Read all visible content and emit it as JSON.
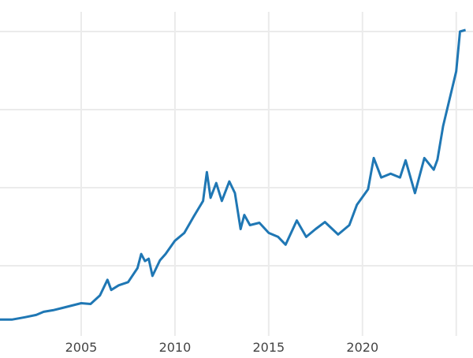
{
  "chart_data": {
    "type": "line",
    "title": "",
    "xlabel": "",
    "ylabel": "",
    "xlim": [
      2000.67,
      2025.6
    ],
    "ylim": [
      0,
      4.3
    ],
    "x_ticks": [
      2005,
      2010,
      2015,
      2020,
      2025
    ],
    "x_tick_labels": [
      "2005",
      "2010",
      "2015",
      "2020",
      ""
    ],
    "y_gridlines": [
      1,
      2,
      3,
      4
    ],
    "grid": true,
    "line_color": "#1f77b4",
    "series": [
      {
        "x": [
          2000.67,
          2001.3,
          2002,
          2002.6,
          2003,
          2003.5,
          2004,
          2004.5,
          2005,
          2005.5,
          2006,
          2006.4,
          2006.6,
          2007,
          2007.5,
          2008,
          2008.2,
          2008.4,
          2008.6,
          2008.8,
          2009.2,
          2009.5,
          2010,
          2010.5,
          2011,
          2011.5,
          2011.7,
          2011.9,
          2012.2,
          2012.5,
          2012.9,
          2013.2,
          2013.5,
          2013.7,
          2014,
          2014.5,
          2015,
          2015.5,
          2015.9,
          2016.5,
          2017,
          2017.5,
          2018,
          2018.7,
          2019.3,
          2019.7,
          2020.3,
          2020.6,
          2021,
          2021.5,
          2022,
          2022.3,
          2022.8,
          2023.3,
          2023.8,
          2024,
          2024.3,
          2024.7,
          2025,
          2025.2,
          2025.5
        ],
        "values": [
          0.31,
          0.31,
          0.34,
          0.37,
          0.41,
          0.43,
          0.46,
          0.49,
          0.52,
          0.51,
          0.62,
          0.82,
          0.69,
          0.75,
          0.79,
          0.97,
          1.15,
          1.06,
          1.09,
          0.87,
          1.07,
          1.15,
          1.32,
          1.42,
          1.63,
          1.83,
          2.2,
          1.87,
          2.06,
          1.83,
          2.08,
          1.93,
          1.47,
          1.65,
          1.52,
          1.55,
          1.42,
          1.37,
          1.27,
          1.58,
          1.37,
          1.47,
          1.56,
          1.4,
          1.52,
          1.78,
          1.98,
          2.38,
          2.13,
          2.18,
          2.13,
          2.35,
          1.93,
          2.38,
          2.23,
          2.36,
          2.79,
          3.19,
          3.49,
          4.0,
          4.02
        ]
      }
    ]
  }
}
